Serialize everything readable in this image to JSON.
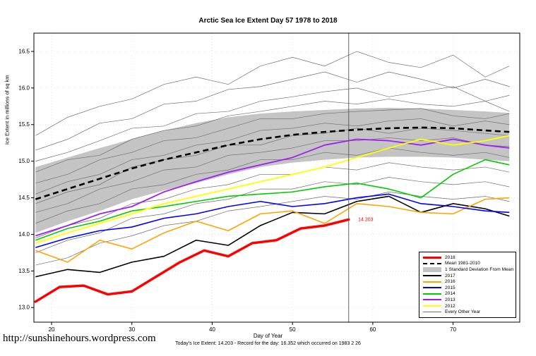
{
  "page": {
    "url_text": "http://sunshinehours.wordpress.com"
  },
  "chart_data": {
    "type": "line",
    "title": "Arctic Sea Ice Extent Day 57 1978 to 2018",
    "xlabel": "Day of Year",
    "ylabel": "Ice Extent in millions of sq km",
    "footer": "Today's Ice Extent: 14.203  - Record for the day: 16.352 which occurred on 1983 2 26",
    "xlim": [
      17.8,
      78.3
    ],
    "ylim": [
      12.8,
      16.75
    ],
    "xticks": [
      20,
      30,
      40,
      50,
      60,
      70
    ],
    "yticks": [
      13.0,
      13.5,
      14.0,
      14.5,
      15.0,
      15.5,
      16.0,
      16.5
    ],
    "grid": true,
    "vline_x": 57,
    "annotation": {
      "text": "14.203",
      "x": 58,
      "y": 14.2,
      "color": "#FF0000"
    },
    "x": [
      18,
      22,
      26,
      30,
      34,
      38,
      42,
      46,
      50,
      54,
      58,
      62,
      66,
      70,
      74,
      77
    ],
    "band": {
      "name": "1 Standard Deviation From Mean",
      "color": "#c4c4c4",
      "upper": [
        14.92,
        15.05,
        15.18,
        15.3,
        15.42,
        15.52,
        15.6,
        15.65,
        15.68,
        15.7,
        15.72,
        15.73,
        15.72,
        15.7,
        15.68,
        15.66
      ],
      "lower": [
        14.02,
        14.18,
        14.32,
        14.48,
        14.6,
        14.7,
        14.82,
        14.92,
        14.98,
        15.02,
        15.05,
        15.06,
        15.06,
        15.05,
        15.02,
        15.0
      ]
    },
    "mean": {
      "name": "Mean 1981-2010",
      "color": "#000000",
      "dashed": true,
      "values": [
        14.48,
        14.62,
        14.76,
        14.9,
        15.02,
        15.12,
        15.22,
        15.3,
        15.36,
        15.4,
        15.43,
        15.45,
        15.46,
        15.45,
        15.42,
        15.4
      ]
    },
    "series": [
      {
        "name": "2018",
        "color": "#FF0000",
        "width": 3.5,
        "x": [
          18,
          21,
          24,
          27,
          30,
          33,
          36,
          39,
          42,
          45,
          48,
          51,
          54,
          57
        ],
        "values": [
          13.08,
          13.28,
          13.3,
          13.18,
          13.22,
          13.42,
          13.62,
          13.78,
          13.7,
          13.88,
          13.92,
          14.08,
          14.12,
          14.203
        ]
      },
      {
        "name": "2017",
        "color": "#000000",
        "width": 1.6,
        "values": [
          13.42,
          13.52,
          13.48,
          13.62,
          13.7,
          13.92,
          13.85,
          14.12,
          14.3,
          14.28,
          14.45,
          14.52,
          14.3,
          14.42,
          14.35,
          14.25
        ]
      },
      {
        "name": "2016",
        "color": "#FFA500",
        "width": 1.6,
        "values": [
          13.78,
          13.62,
          13.92,
          13.8,
          14.02,
          14.18,
          14.05,
          14.28,
          14.32,
          14.15,
          14.42,
          14.38,
          14.3,
          14.28,
          14.48,
          14.5
        ]
      },
      {
        "name": "2015",
        "color": "#0000FF",
        "width": 1.6,
        "values": [
          13.82,
          13.95,
          14.05,
          14.1,
          14.22,
          14.28,
          14.38,
          14.45,
          14.38,
          14.42,
          14.5,
          14.55,
          14.42,
          14.38,
          14.32,
          14.3
        ]
      },
      {
        "name": "2014",
        "color": "#00CC00",
        "width": 1.6,
        "values": [
          13.92,
          14.08,
          14.18,
          14.32,
          14.38,
          14.45,
          14.52,
          14.55,
          14.58,
          14.65,
          14.7,
          14.62,
          14.5,
          14.82,
          15.02,
          14.95
        ]
      },
      {
        "name": "2013",
        "color": "#A020F0",
        "width": 1.8,
        "values": [
          13.98,
          14.12,
          14.28,
          14.38,
          14.58,
          14.72,
          14.85,
          14.95,
          15.05,
          15.22,
          15.3,
          15.28,
          15.22,
          15.3,
          15.22,
          15.18
        ]
      },
      {
        "name": "2012",
        "color": "#FFFF00",
        "width": 1.8,
        "values": [
          13.88,
          14.02,
          14.15,
          14.28,
          14.42,
          14.52,
          14.62,
          14.72,
          14.82,
          14.92,
          15.05,
          15.18,
          15.3,
          15.22,
          15.28,
          15.35
        ]
      }
    ],
    "other_years": {
      "name": "Every Other Year",
      "color": "#6e6e6e",
      "series": [
        [
          15.35,
          15.6,
          15.75,
          15.85,
          16.05,
          16.15,
          16.05,
          16.3,
          16.42,
          16.3,
          16.5,
          16.35,
          16.28,
          16.45,
          16.15,
          16.3
        ],
        [
          15.15,
          15.3,
          15.52,
          15.58,
          15.78,
          15.82,
          15.98,
          16.02,
          16.12,
          16.22,
          16.08,
          16.22,
          16.12,
          16.0,
          16.12,
          16.02
        ],
        [
          15.0,
          15.12,
          15.28,
          15.45,
          15.48,
          15.65,
          15.68,
          15.82,
          15.88,
          15.95,
          16.0,
          15.88,
          15.95,
          16.02,
          15.82,
          15.9
        ],
        [
          14.85,
          15.02,
          15.08,
          15.3,
          15.42,
          15.48,
          15.62,
          15.68,
          15.75,
          15.82,
          15.78,
          15.85,
          15.78,
          15.75,
          15.82,
          15.68
        ],
        [
          14.7,
          14.82,
          15.02,
          15.12,
          15.28,
          15.32,
          15.45,
          15.58,
          15.58,
          15.65,
          15.68,
          15.7,
          15.72,
          15.62,
          15.58,
          15.65
        ],
        [
          14.55,
          14.72,
          14.82,
          15.02,
          15.08,
          15.22,
          15.28,
          15.42,
          15.45,
          15.52,
          15.48,
          15.55,
          15.58,
          15.48,
          15.55,
          15.5
        ],
        [
          14.42,
          14.58,
          14.68,
          14.92,
          15.02,
          15.08,
          15.22,
          15.22,
          15.35,
          15.38,
          15.45,
          15.38,
          15.45,
          15.42,
          15.38,
          15.35
        ],
        [
          14.3,
          14.42,
          14.62,
          14.72,
          14.88,
          14.92,
          15.08,
          15.12,
          15.18,
          15.28,
          15.28,
          15.32,
          15.28,
          15.32,
          15.22,
          15.2
        ],
        [
          14.15,
          14.32,
          14.42,
          14.62,
          14.68,
          14.82,
          14.88,
          15.02,
          15.02,
          15.12,
          15.08,
          15.18,
          15.12,
          15.08,
          15.12,
          15.05
        ],
        [
          13.95,
          14.12,
          14.22,
          14.42,
          14.48,
          14.62,
          14.68,
          14.82,
          14.82,
          14.92,
          14.88,
          14.98,
          14.92,
          14.88,
          14.92,
          14.85
        ],
        [
          13.75,
          13.92,
          14.02,
          14.22,
          14.28,
          14.42,
          14.48,
          14.62,
          14.62,
          14.72,
          14.68,
          14.78,
          14.72,
          14.68,
          14.72,
          14.65
        ],
        [
          13.58,
          13.68,
          13.88,
          13.98,
          14.12,
          14.18,
          14.32,
          14.38,
          14.45,
          14.52,
          14.48,
          14.58,
          14.52,
          14.48,
          14.52,
          14.45
        ]
      ]
    },
    "legend": [
      {
        "label": "2018",
        "color": "#FF0000",
        "type": "line-thick"
      },
      {
        "label": "Mean 1981-2010",
        "color": "#000000",
        "type": "line-dashed"
      },
      {
        "label": "1 Standard Deviation From Mean",
        "color": "#c4c4c4",
        "type": "box"
      },
      {
        "label": "2017",
        "color": "#000000",
        "type": "line"
      },
      {
        "label": "2016",
        "color": "#FFA500",
        "type": "line"
      },
      {
        "label": "2015",
        "color": "#0000FF",
        "type": "line"
      },
      {
        "label": "2014",
        "color": "#00CC00",
        "type": "line"
      },
      {
        "label": "2013",
        "color": "#A020F0",
        "type": "line"
      },
      {
        "label": "2012",
        "color": "#FFFF00",
        "type": "line"
      },
      {
        "label": "Every Other Year",
        "color": "#6e6e6e",
        "type": "line-thin"
      }
    ]
  }
}
